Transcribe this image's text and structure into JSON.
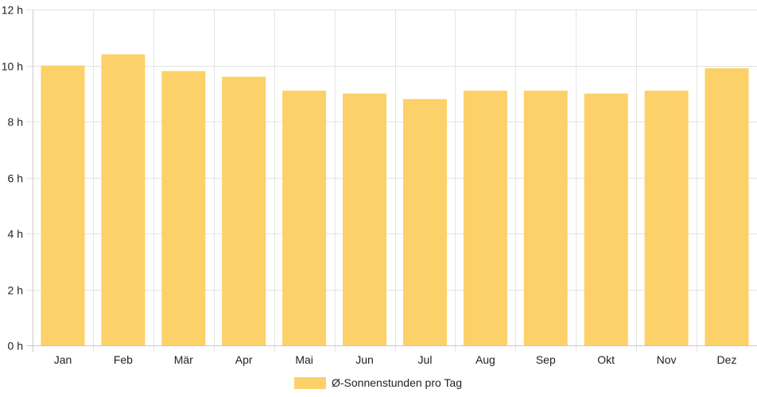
{
  "chart_data": {
    "type": "bar",
    "categories": [
      "Jan",
      "Feb",
      "Mär",
      "Apr",
      "Mai",
      "Jun",
      "Jul",
      "Aug",
      "Sep",
      "Okt",
      "Nov",
      "Dez"
    ],
    "series": [
      {
        "name": "Ø-Sonnenstunden pro Tag",
        "values": [
          10.0,
          10.4,
          9.8,
          9.6,
          9.1,
          9.0,
          8.8,
          9.1,
          9.1,
          9.0,
          9.1,
          9.9
        ],
        "color": "#fdd169"
      }
    ],
    "y_ticks": [
      "0 h",
      "2 h",
      "4 h",
      "6 h",
      "8 h",
      "10 h",
      "12 h"
    ],
    "ylim": [
      0,
      12
    ],
    "grid": true,
    "legend_position": "bottom-center"
  }
}
